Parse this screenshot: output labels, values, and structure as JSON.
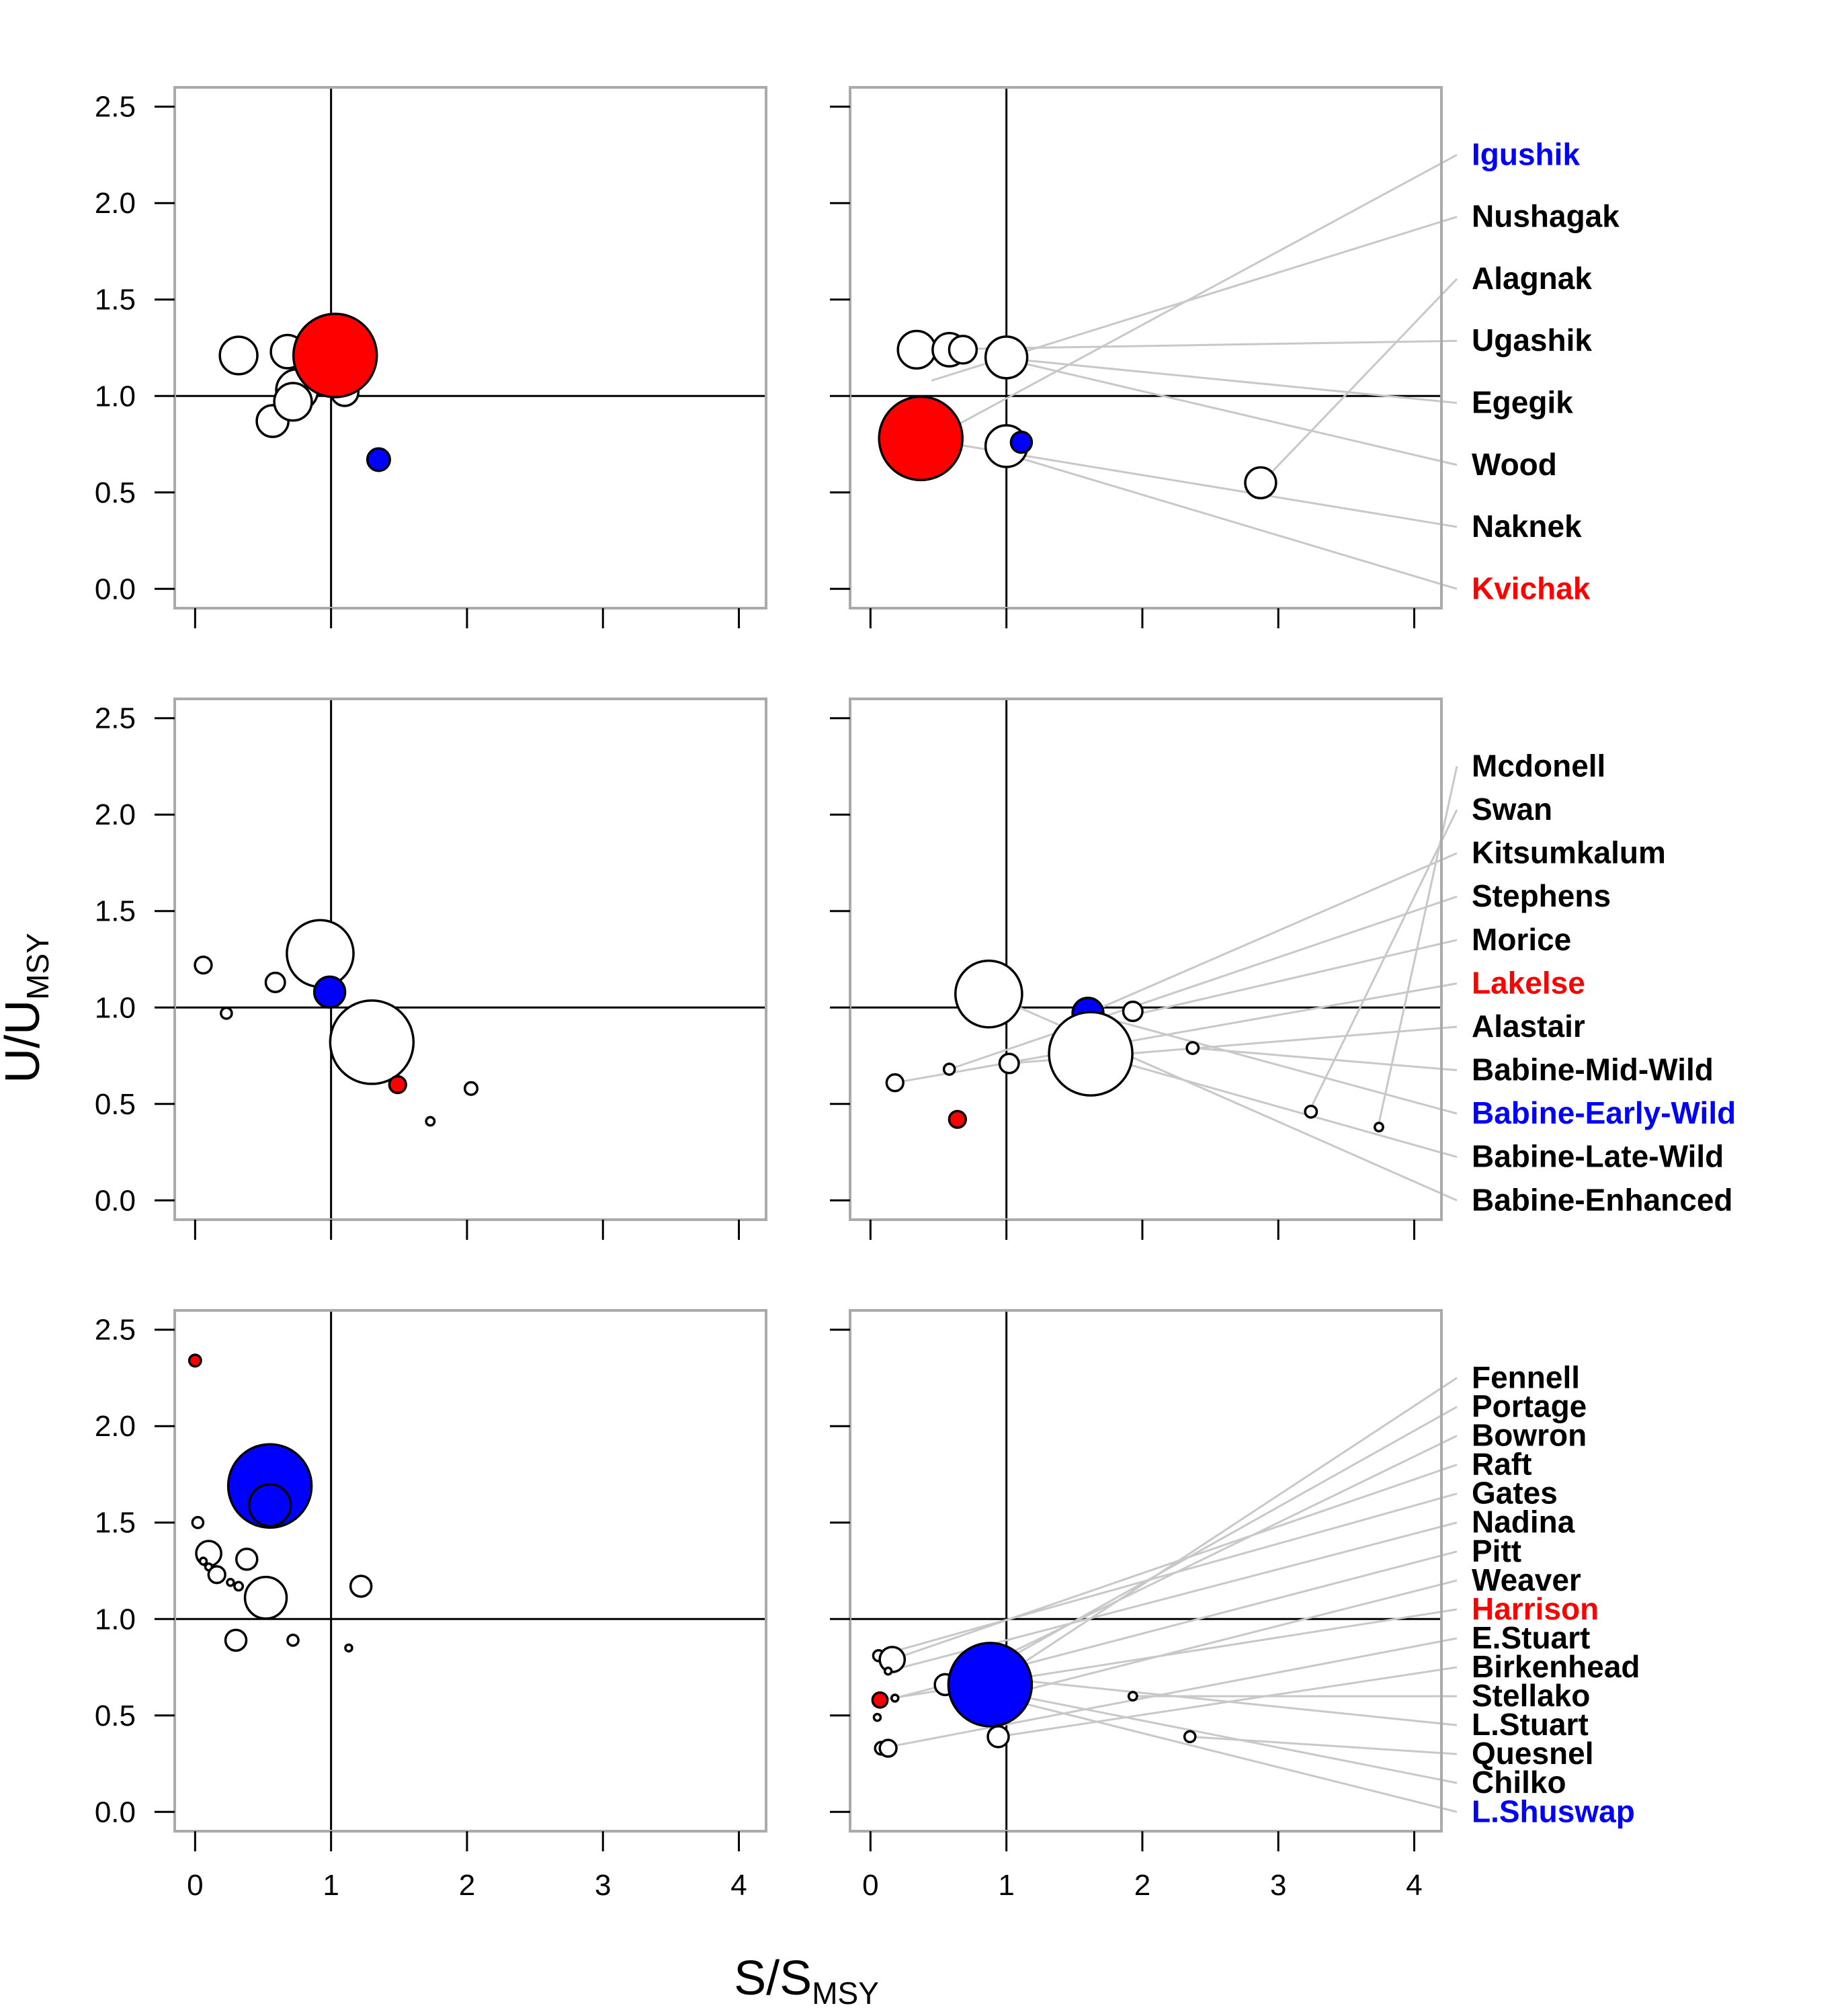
{
  "chart_data": {
    "type": "scatter",
    "x_axis_label": {
      "main": "S/S",
      "sub": "MSY"
    },
    "y_axis_label": {
      "main": "U/U",
      "sub": "MSY"
    },
    "xlim": [
      -0.15,
      4.2
    ],
    "ylim": [
      -0.1,
      2.6
    ],
    "x_ticks": [
      "0",
      "1",
      "2",
      "3",
      "4"
    ],
    "y_ticks": [
      "0.0",
      "0.5",
      "1.0",
      "1.5",
      "2.0",
      "2.5"
    ],
    "reference_lines": {
      "x": 1,
      "y": 1
    },
    "colors": {
      "high": "#ff0000",
      "low": "#0000ff",
      "other": "#ffffff",
      "leader": "#c8c8c8",
      "frame": "#aaaaaa"
    },
    "panels": [
      {
        "name": "row1-left",
        "points": [
          {
            "x": 0.32,
            "y": 1.21,
            "r": 0.45,
            "fill": "other"
          },
          {
            "x": 0.57,
            "y": 0.87,
            "r": 0.38,
            "fill": "other"
          },
          {
            "x": 0.75,
            "y": 1.03,
            "r": 0.5,
            "fill": "other"
          },
          {
            "x": 0.72,
            "y": 0.97,
            "r": 0.45,
            "fill": "other"
          },
          {
            "x": 0.68,
            "y": 1.23,
            "r": 0.4,
            "fill": "other"
          },
          {
            "x": 1.1,
            "y": 1.02,
            "r": 0.33,
            "fill": "other"
          },
          {
            "x": 1.03,
            "y": 1.21,
            "r": 1.0,
            "fill": "high"
          },
          {
            "x": 1.35,
            "y": 0.67,
            "r": 0.27,
            "fill": "low"
          }
        ]
      },
      {
        "name": "row1-right",
        "points": [
          {
            "x": 0.34,
            "y": 1.24,
            "r": 0.45,
            "fill": "other"
          },
          {
            "x": 0.58,
            "y": 1.24,
            "r": 0.4,
            "fill": "other"
          },
          {
            "x": 0.68,
            "y": 1.24,
            "r": 0.33,
            "fill": "other"
          },
          {
            "x": 1.0,
            "y": 1.2,
            "r": 0.5,
            "fill": "other"
          },
          {
            "x": 0.37,
            "y": 0.78,
            "r": 1.0,
            "fill": "high"
          },
          {
            "x": 1.0,
            "y": 0.74,
            "r": 0.5,
            "fill": "other"
          },
          {
            "x": 1.11,
            "y": 0.76,
            "r": 0.25,
            "fill": "low"
          },
          {
            "x": 2.87,
            "y": 0.55,
            "r": 0.37,
            "fill": "other"
          }
        ],
        "labels": [
          {
            "text": "Igushik",
            "color": "low",
            "anchor": [
              0.35,
              0.74
            ]
          },
          {
            "text": "Nushagak",
            "color": "other",
            "anchor": [
              0.45,
              1.08
            ]
          },
          {
            "text": "Alagnak",
            "color": "other",
            "anchor": [
              2.85,
              0.53
            ]
          },
          {
            "text": "Ugashik",
            "color": "other",
            "anchor": [
              0.35,
              1.24
            ]
          },
          {
            "text": "Egegik",
            "color": "other",
            "anchor": [
              0.92,
              1.2
            ]
          },
          {
            "text": "Wood",
            "color": "other",
            "anchor": [
              1.0,
              1.19
            ]
          },
          {
            "text": "Naknek",
            "color": "other",
            "anchor": [
              0.62,
              0.75
            ]
          },
          {
            "text": "Kvichak",
            "color": "high",
            "anchor": [
              0.9,
              0.72
            ]
          }
        ]
      },
      {
        "name": "row2-left",
        "points": [
          {
            "x": 0.06,
            "y": 1.22,
            "r": 0.2,
            "fill": "other"
          },
          {
            "x": 0.23,
            "y": 0.97,
            "r": 0.13,
            "fill": "other"
          },
          {
            "x": 0.59,
            "y": 1.13,
            "r": 0.23,
            "fill": "other"
          },
          {
            "x": 0.92,
            "y": 1.28,
            "r": 0.8,
            "fill": "other"
          },
          {
            "x": 0.99,
            "y": 1.08,
            "r": 0.37,
            "fill": "low"
          },
          {
            "x": 1.17,
            "y": 0.86,
            "r": 0.14,
            "fill": "other"
          },
          {
            "x": 1.1,
            "y": 0.8,
            "r": 0.23,
            "fill": "other"
          },
          {
            "x": 1.3,
            "y": 0.82,
            "r": 1.0,
            "fill": "other"
          },
          {
            "x": 1.49,
            "y": 0.6,
            "r": 0.2,
            "fill": "high"
          },
          {
            "x": 1.73,
            "y": 0.41,
            "r": 0.1,
            "fill": "other"
          },
          {
            "x": 2.03,
            "y": 0.58,
            "r": 0.15,
            "fill": "other"
          }
        ]
      },
      {
        "name": "row2-right",
        "points": [
          {
            "x": 0.18,
            "y": 0.61,
            "r": 0.2,
            "fill": "other"
          },
          {
            "x": 0.58,
            "y": 0.68,
            "r": 0.13,
            "fill": "other"
          },
          {
            "x": 0.64,
            "y": 0.42,
            "r": 0.2,
            "fill": "high"
          },
          {
            "x": 0.87,
            "y": 1.07,
            "r": 0.8,
            "fill": "other"
          },
          {
            "x": 1.02,
            "y": 0.71,
            "r": 0.23,
            "fill": "other"
          },
          {
            "x": 1.6,
            "y": 0.97,
            "r": 0.37,
            "fill": "low"
          },
          {
            "x": 1.62,
            "y": 0.76,
            "r": 1.0,
            "fill": "other"
          },
          {
            "x": 1.93,
            "y": 0.98,
            "r": 0.23,
            "fill": "other"
          },
          {
            "x": 2.37,
            "y": 0.79,
            "r": 0.14,
            "fill": "other"
          },
          {
            "x": 3.24,
            "y": 0.46,
            "r": 0.14,
            "fill": "other"
          },
          {
            "x": 3.74,
            "y": 0.38,
            "r": 0.1,
            "fill": "other"
          }
        ],
        "labels": [
          {
            "text": "Mcdonell",
            "color": "other",
            "anchor": [
              3.74,
              0.4
            ]
          },
          {
            "text": "Swan",
            "color": "other",
            "anchor": [
              3.24,
              0.48
            ]
          },
          {
            "text": "Kitsumkalum",
            "color": "other",
            "anchor": [
              1.6,
              0.97
            ]
          },
          {
            "text": "Stephens",
            "color": "other",
            "anchor": [
              0.58,
              0.68
            ]
          },
          {
            "text": "Morice",
            "color": "other",
            "anchor": [
              1.93,
              0.96
            ]
          },
          {
            "text": "Lakelse",
            "color": "high",
            "anchor": [
              0.18,
              0.61
            ]
          },
          {
            "text": "Alastair",
            "color": "other",
            "anchor": [
              1.02,
              0.71
            ]
          },
          {
            "text": "Babine-Mid-Wild",
            "color": "other",
            "anchor": [
              2.37,
              0.79
            ]
          },
          {
            "text": "Babine-Early-Wild",
            "color": "low",
            "anchor": [
              1.6,
              0.97
            ]
          },
          {
            "text": "Babine-Late-Wild",
            "color": "other",
            "anchor": [
              1.62,
              0.76
            ]
          },
          {
            "text": "Babine-Enhanced",
            "color": "other",
            "anchor": [
              0.87,
              1.07
            ]
          }
        ]
      },
      {
        "name": "row3-left",
        "points": [
          {
            "x": 0.0,
            "y": 2.34,
            "r": 0.14,
            "fill": "high"
          },
          {
            "x": 0.55,
            "y": 1.69,
            "r": 1.0,
            "fill": "low"
          },
          {
            "x": 0.55,
            "y": 1.59,
            "r": 0.5,
            "fill": "low"
          },
          {
            "x": 0.02,
            "y": 1.5,
            "r": 0.13,
            "fill": "other"
          },
          {
            "x": 0.1,
            "y": 1.34,
            "r": 0.3,
            "fill": "other"
          },
          {
            "x": 0.06,
            "y": 1.3,
            "r": 0.07,
            "fill": "other"
          },
          {
            "x": 0.1,
            "y": 1.27,
            "r": 0.07,
            "fill": "other"
          },
          {
            "x": 0.16,
            "y": 1.23,
            "r": 0.2,
            "fill": "other"
          },
          {
            "x": 0.26,
            "y": 1.19,
            "r": 0.07,
            "fill": "other"
          },
          {
            "x": 0.32,
            "y": 1.17,
            "r": 0.1,
            "fill": "other"
          },
          {
            "x": 0.38,
            "y": 1.31,
            "r": 0.25,
            "fill": "other"
          },
          {
            "x": 0.52,
            "y": 1.11,
            "r": 0.5,
            "fill": "other"
          },
          {
            "x": 0.3,
            "y": 0.89,
            "r": 0.25,
            "fill": "other"
          },
          {
            "x": 0.72,
            "y": 0.89,
            "r": 0.13,
            "fill": "other"
          },
          {
            "x": 1.13,
            "y": 0.85,
            "r": 0.07,
            "fill": "other"
          },
          {
            "x": 1.22,
            "y": 1.17,
            "r": 0.25,
            "fill": "other"
          }
        ]
      },
      {
        "name": "row3-right",
        "points": [
          {
            "x": 0.06,
            "y": 0.81,
            "r": 0.13,
            "fill": "other"
          },
          {
            "x": 0.16,
            "y": 0.79,
            "r": 0.3,
            "fill": "other"
          },
          {
            "x": 0.13,
            "y": 0.73,
            "r": 0.07,
            "fill": "other"
          },
          {
            "x": 0.07,
            "y": 0.58,
            "r": 0.18,
            "fill": "high"
          },
          {
            "x": 0.18,
            "y": 0.59,
            "r": 0.07,
            "fill": "other"
          },
          {
            "x": 0.05,
            "y": 0.49,
            "r": 0.07,
            "fill": "other"
          },
          {
            "x": 0.08,
            "y": 0.33,
            "r": 0.15,
            "fill": "other"
          },
          {
            "x": 0.13,
            "y": 0.33,
            "r": 0.2,
            "fill": "other"
          },
          {
            "x": 0.55,
            "y": 0.66,
            "r": 0.25,
            "fill": "other"
          },
          {
            "x": 0.77,
            "y": 0.7,
            "r": 0.5,
            "fill": "other"
          },
          {
            "x": 0.85,
            "y": 0.58,
            "r": 0.5,
            "fill": "low"
          },
          {
            "x": 0.88,
            "y": 0.66,
            "r": 1.0,
            "fill": "low"
          },
          {
            "x": 0.92,
            "y": 0.42,
            "r": 0.07,
            "fill": "other"
          },
          {
            "x": 0.94,
            "y": 0.39,
            "r": 0.25,
            "fill": "other"
          },
          {
            "x": 1.93,
            "y": 0.6,
            "r": 0.1,
            "fill": "other"
          },
          {
            "x": 2.35,
            "y": 0.39,
            "r": 0.13,
            "fill": "other"
          }
        ],
        "labels": [
          {
            "text": "Fennell",
            "color": "other",
            "anchor": [
              0.88,
              0.66
            ]
          },
          {
            "text": "Portage",
            "color": "other",
            "anchor": [
              0.77,
              0.7
            ]
          },
          {
            "text": "Bowron",
            "color": "other",
            "anchor": [
              0.55,
              0.66
            ]
          },
          {
            "text": "Raft",
            "color": "other",
            "anchor": [
              0.16,
              0.79
            ]
          },
          {
            "text": "Gates",
            "color": "other",
            "anchor": [
              0.06,
              0.81
            ]
          },
          {
            "text": "Nadina",
            "color": "other",
            "anchor": [
              0.13,
              0.73
            ]
          },
          {
            "text": "Pitt",
            "color": "other",
            "anchor": [
              0.18,
              0.59
            ]
          },
          {
            "text": "Weaver",
            "color": "other",
            "anchor": [
              0.85,
              0.58
            ]
          },
          {
            "text": "Harrison",
            "color": "high",
            "anchor": [
              0.07,
              0.58
            ]
          },
          {
            "text": "E.Stuart",
            "color": "other",
            "anchor": [
              0.08,
              0.33
            ]
          },
          {
            "text": "Birkenhead",
            "color": "other",
            "anchor": [
              0.94,
              0.39
            ]
          },
          {
            "text": "Stellako",
            "color": "other",
            "anchor": [
              1.93,
              0.6
            ]
          },
          {
            "text": "L.Stuart",
            "color": "other",
            "anchor": [
              0.85,
              0.7
            ]
          },
          {
            "text": "Quesnel",
            "color": "other",
            "anchor": [
              2.35,
              0.39
            ]
          },
          {
            "text": "Chilko",
            "color": "other",
            "anchor": [
              0.88,
              0.63
            ]
          },
          {
            "text": "L.Shuswap",
            "color": "low",
            "anchor": [
              0.8,
              0.62
            ]
          }
        ]
      }
    ]
  }
}
